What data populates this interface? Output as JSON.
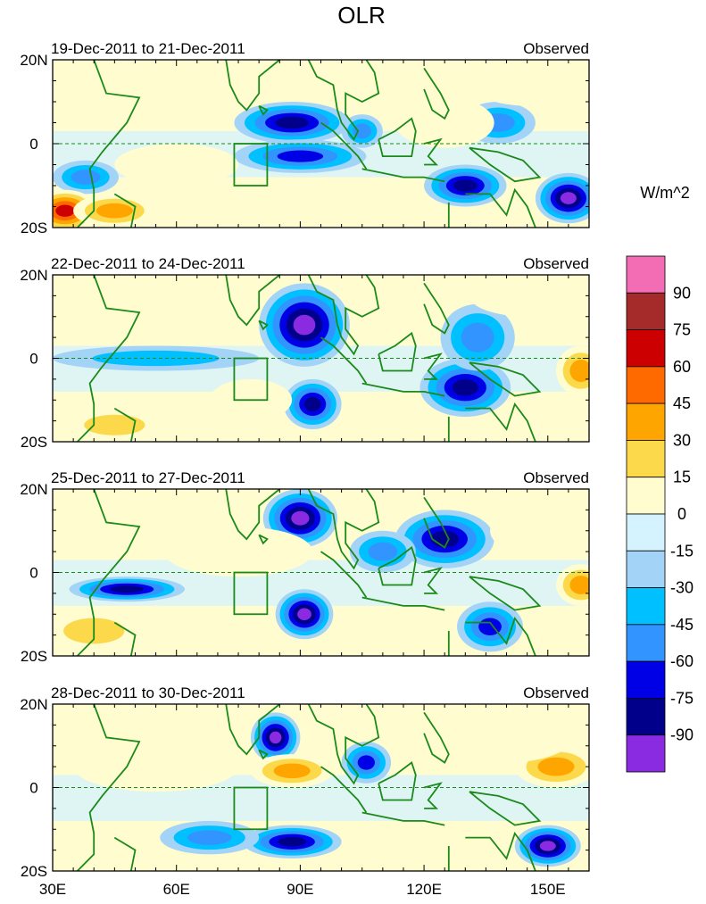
{
  "chart_data": {
    "type": "heatmap",
    "title": "OLR",
    "units": "W/m^2",
    "x_ticks": [
      "30E",
      "60E",
      "90E",
      "120E",
      "150E"
    ],
    "x_tick_values": [
      30,
      60,
      90,
      120,
      150
    ],
    "y_ticks": [
      "20N",
      "0",
      "20S"
    ],
    "y_tick_values": [
      20,
      0,
      -20
    ],
    "xlim": [
      30,
      160
    ],
    "ylim": [
      -20,
      20
    ],
    "equator_dashed": true,
    "box_region": {
      "lon": [
        74,
        82
      ],
      "lat": [
        -10,
        0
      ]
    },
    "colorbar": {
      "labels": [
        "90",
        "75",
        "60",
        "45",
        "30",
        "15",
        "0",
        "-15",
        "-30",
        "-45",
        "-60",
        "-75",
        "-90"
      ],
      "colors": [
        "#f26db3",
        "#a52a2a",
        "#cc0000",
        "#ff6a00",
        "#ffa500",
        "#fcd94a",
        "#fffcd0",
        "#d4f3ff",
        "#a3d3f6",
        "#00c0ff",
        "#3295ff",
        "#0000e6",
        "#00008b",
        "#8a2be2"
      ]
    },
    "panels": [
      {
        "label": "19-Dec-2011 to 21-Dec-2011",
        "tag": "Observed",
        "anomalies": [
          {
            "lon": 88,
            "lat": 5,
            "value": -75,
            "rx": 14,
            "ry": 5
          },
          {
            "lon": 90,
            "lat": -3,
            "value": -70,
            "rx": 16,
            "ry": 4
          },
          {
            "lon": 130,
            "lat": -10,
            "value": -80,
            "rx": 10,
            "ry": 5
          },
          {
            "lon": 155,
            "lat": -13,
            "value": -90,
            "rx": 8,
            "ry": 6
          },
          {
            "lon": 138,
            "lat": 5,
            "value": -45,
            "rx": 9,
            "ry": 5
          },
          {
            "lon": 38,
            "lat": -8,
            "value": -55,
            "rx": 8,
            "ry": 4
          },
          {
            "lon": 105,
            "lat": 3,
            "value": -55,
            "rx": 5,
            "ry": 4
          },
          {
            "lon": 33,
            "lat": -16,
            "value": 75,
            "rx": 8,
            "ry": 5
          },
          {
            "lon": 45,
            "lat": -16,
            "value": 45,
            "rx": 10,
            "ry": 4
          },
          {
            "lon": 145,
            "lat": 15,
            "value": 20,
            "rx": 14,
            "ry": 6
          },
          {
            "lon": 125,
            "lat": 5,
            "value": 20,
            "rx": 12,
            "ry": 6
          },
          {
            "lon": 60,
            "lat": -5,
            "value": 15,
            "rx": 15,
            "ry": 5
          }
        ]
      },
      {
        "label": "22-Dec-2011 to 24-Dec-2011",
        "tag": "Observed",
        "anomalies": [
          {
            "lon": 91,
            "lat": 8,
            "value": -95,
            "rx": 11,
            "ry": 10
          },
          {
            "lon": 93,
            "lat": -11,
            "value": -85,
            "rx": 7,
            "ry": 6
          },
          {
            "lon": 130,
            "lat": -7,
            "value": -75,
            "rx": 11,
            "ry": 7
          },
          {
            "lon": 133,
            "lat": 5,
            "value": -50,
            "rx": 9,
            "ry": 8
          },
          {
            "lon": 55,
            "lat": 0,
            "value": -40,
            "rx": 25,
            "ry": 3
          },
          {
            "lon": 158,
            "lat": -3,
            "value": 55,
            "rx": 6,
            "ry": 6
          },
          {
            "lon": 45,
            "lat": -16,
            "value": 35,
            "rx": 12,
            "ry": 4
          },
          {
            "lon": 78,
            "lat": -10,
            "value": 25,
            "rx": 10,
            "ry": 5
          },
          {
            "lon": 145,
            "lat": 15,
            "value": 20,
            "rx": 14,
            "ry": 5
          }
        ]
      },
      {
        "label": "25-Dec-2011 to 27-Dec-2011",
        "tag": "Observed",
        "anomalies": [
          {
            "lon": 90,
            "lat": 13,
            "value": -95,
            "rx": 9,
            "ry": 7
          },
          {
            "lon": 91,
            "lat": -10,
            "value": -90,
            "rx": 7,
            "ry": 6
          },
          {
            "lon": 125,
            "lat": 8,
            "value": -75,
            "rx": 12,
            "ry": 7
          },
          {
            "lon": 48,
            "lat": -4,
            "value": -75,
            "rx": 14,
            "ry": 3
          },
          {
            "lon": 136,
            "lat": -13,
            "value": -70,
            "rx": 8,
            "ry": 6
          },
          {
            "lon": 110,
            "lat": 5,
            "value": -45,
            "rx": 8,
            "ry": 5
          },
          {
            "lon": 40,
            "lat": -14,
            "value": 40,
            "rx": 12,
            "ry": 5
          },
          {
            "lon": 158,
            "lat": -3,
            "value": 45,
            "rx": 6,
            "ry": 5
          },
          {
            "lon": 75,
            "lat": 5,
            "value": 15,
            "rx": 18,
            "ry": 6
          },
          {
            "lon": 148,
            "lat": 10,
            "value": 20,
            "rx": 12,
            "ry": 6
          }
        ]
      },
      {
        "label": "28-Dec-2011 to 30-Dec-2011",
        "tag": "Observed",
        "anomalies": [
          {
            "lon": 84,
            "lat": 12,
            "value": -90,
            "rx": 6,
            "ry": 6
          },
          {
            "lon": 88,
            "lat": -13,
            "value": -80,
            "rx": 12,
            "ry": 4
          },
          {
            "lon": 150,
            "lat": -14,
            "value": -90,
            "rx": 8,
            "ry": 5
          },
          {
            "lon": 106,
            "lat": 6,
            "value": -70,
            "rx": 6,
            "ry": 5
          },
          {
            "lon": 68,
            "lat": -12,
            "value": -50,
            "rx": 12,
            "ry": 4
          },
          {
            "lon": 88,
            "lat": 4,
            "value": 45,
            "rx": 10,
            "ry": 4
          },
          {
            "lon": 152,
            "lat": 5,
            "value": 50,
            "rx": 10,
            "ry": 5
          },
          {
            "lon": 140,
            "lat": 12,
            "value": 20,
            "rx": 16,
            "ry": 6
          },
          {
            "lon": 55,
            "lat": 5,
            "value": 15,
            "rx": 20,
            "ry": 6
          }
        ]
      }
    ]
  }
}
